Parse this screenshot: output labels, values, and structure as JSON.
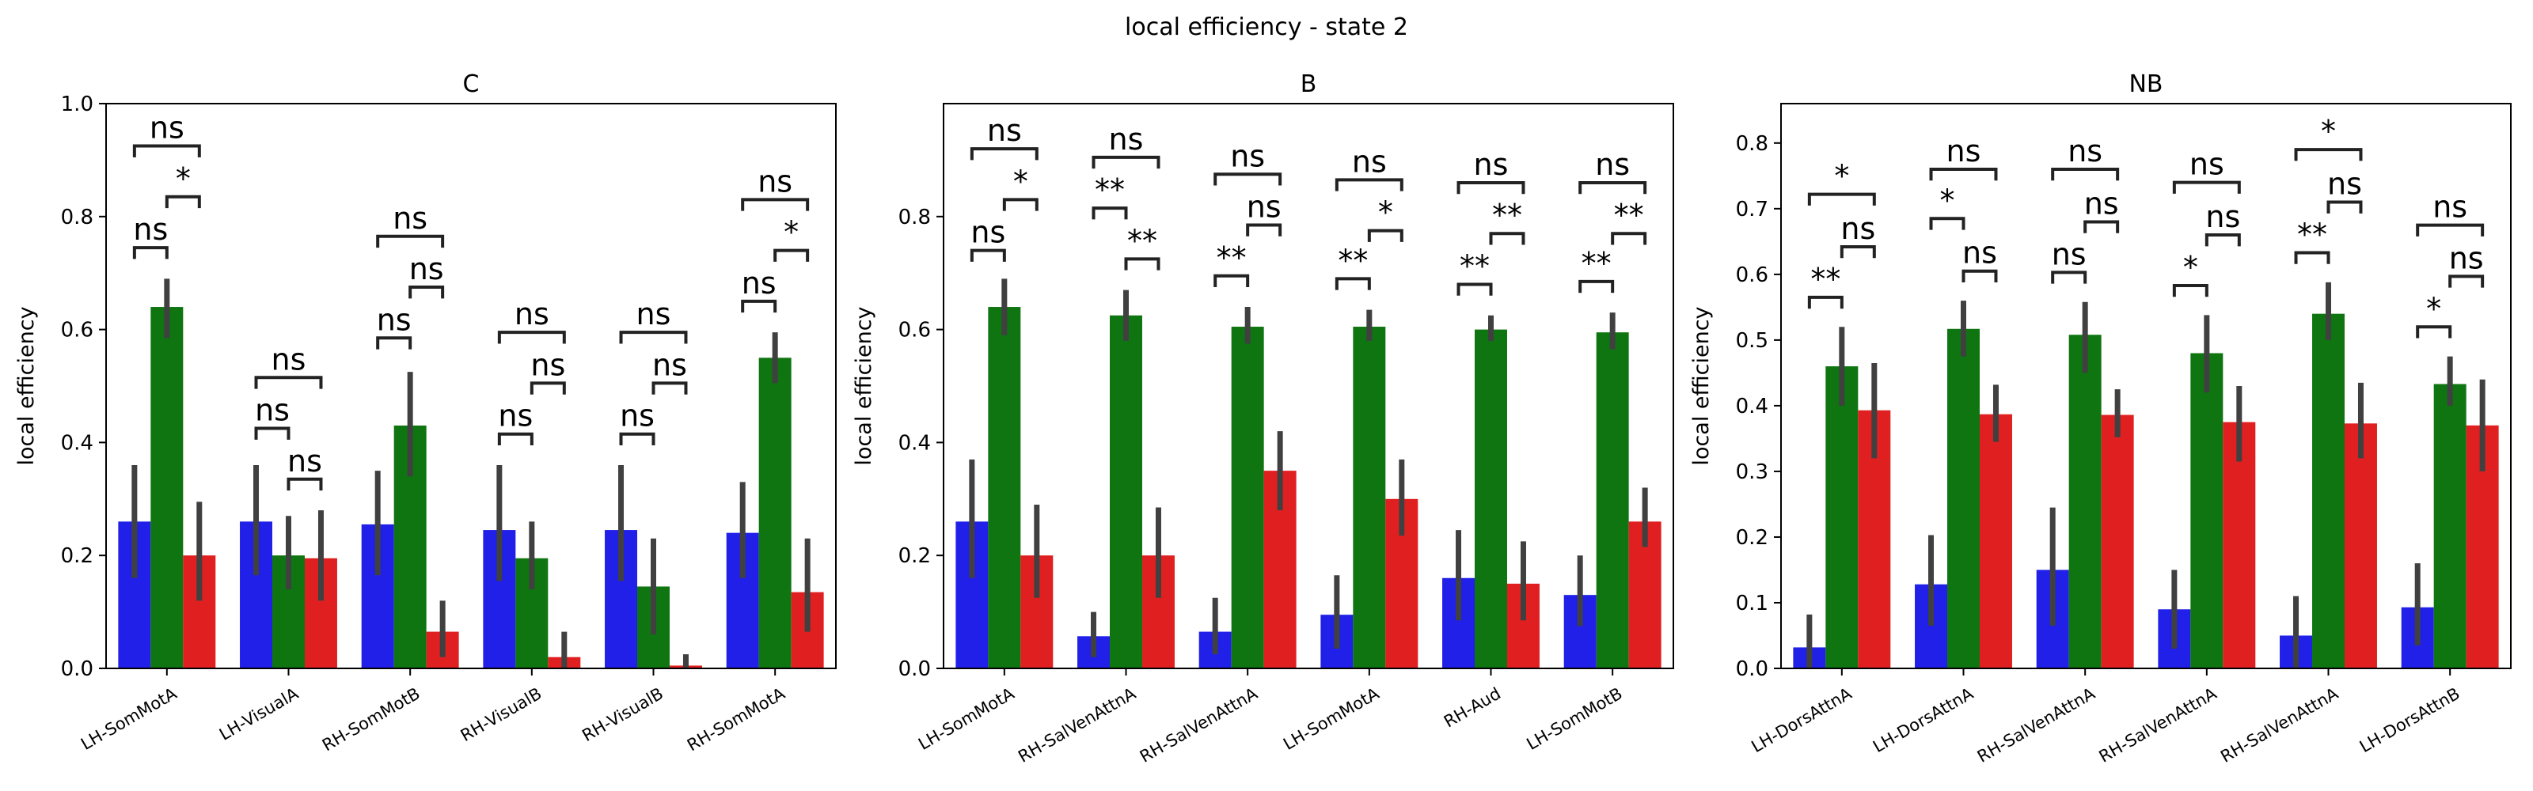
{
  "figure_title": "local efficiency - state 2",
  "colors": {
    "series_1": "#2020e8",
    "series_2": "#0e7510",
    "series_3": "#e02020",
    "error_bar": "#404040",
    "axes": "#000000"
  },
  "chart_data": [
    {
      "type": "bar",
      "title": "C",
      "ylabel": "local efficiency",
      "ylim": [
        0,
        1.0
      ],
      "yticks": [
        "0.0",
        "0.2",
        "0.4",
        "0.6",
        "0.8",
        "1.0"
      ],
      "categories": [
        "LH-SomMotA",
        "LH-VisualA",
        "RH-SomMotB",
        "RH-VisualB",
        "RH-VisualB",
        "RH-SomMotA"
      ],
      "series": [
        {
          "values": [
            0.26,
            0.26,
            0.255,
            0.245,
            0.245,
            0.24
          ],
          "err_low": [
            0.16,
            0.165,
            0.165,
            0.155,
            0.155,
            0.16
          ],
          "err_high": [
            0.36,
            0.36,
            0.35,
            0.36,
            0.36,
            0.33
          ]
        },
        {
          "values": [
            0.64,
            0.2,
            0.43,
            0.195,
            0.145,
            0.55
          ],
          "err_low": [
            0.585,
            0.14,
            0.34,
            0.14,
            0.06,
            0.505
          ],
          "err_high": [
            0.69,
            0.27,
            0.525,
            0.26,
            0.23,
            0.595
          ]
        },
        {
          "values": [
            0.2,
            0.195,
            0.065,
            0.02,
            0.005,
            0.135
          ],
          "err_low": [
            0.12,
            0.12,
            0.02,
            0.0,
            0.0,
            0.065
          ],
          "err_high": [
            0.295,
            0.28,
            0.12,
            0.065,
            0.025,
            0.23
          ]
        }
      ],
      "annotations": [
        {
          "text": "ns",
          "pair": [
            0,
            1
          ],
          "y": 0.745,
          "level": 0
        },
        {
          "text": "*",
          "pair": [
            1,
            2
          ],
          "y": 0.835,
          "level": 0
        },
        {
          "text": "ns",
          "pair": [
            0,
            2
          ],
          "y": 0.925,
          "level": 1
        },
        {
          "text": "ns",
          "pair": [
            0,
            1
          ],
          "y": 0.425,
          "level": 0
        },
        {
          "text": "ns",
          "pair": [
            1,
            2
          ],
          "y": 0.335,
          "level": 0
        },
        {
          "text": "ns",
          "pair": [
            0,
            2
          ],
          "y": 0.515,
          "level": 1
        },
        {
          "text": "ns",
          "pair": [
            0,
            1
          ],
          "y": 0.585,
          "level": 0
        },
        {
          "text": "ns",
          "pair": [
            1,
            2
          ],
          "y": 0.675,
          "level": 0
        },
        {
          "text": "ns",
          "pair": [
            0,
            2
          ],
          "y": 0.765,
          "level": 1
        },
        {
          "text": "ns",
          "pair": [
            0,
            1
          ],
          "y": 0.415,
          "level": 0
        },
        {
          "text": "ns",
          "pair": [
            1,
            2
          ],
          "y": 0.505,
          "level": 0
        },
        {
          "text": "ns",
          "pair": [
            0,
            2
          ],
          "y": 0.595,
          "level": 1
        },
        {
          "text": "ns",
          "pair": [
            0,
            1
          ],
          "y": 0.415,
          "level": 0
        },
        {
          "text": "ns",
          "pair": [
            1,
            2
          ],
          "y": 0.505,
          "level": 0
        },
        {
          "text": "ns",
          "pair": [
            0,
            2
          ],
          "y": 0.595,
          "level": 1
        },
        {
          "text": "ns",
          "pair": [
            0,
            1
          ],
          "y": 0.65,
          "level": 0
        },
        {
          "text": "*",
          "pair": [
            1,
            2
          ],
          "y": 0.74,
          "level": 0
        },
        {
          "text": "ns",
          "pair": [
            0,
            2
          ],
          "y": 0.83,
          "level": 1
        }
      ]
    },
    {
      "type": "bar",
      "title": "B",
      "ylabel": "local efficiency",
      "ylim": [
        0,
        1.0
      ],
      "yticks": [
        "0.0",
        "0.2",
        "0.4",
        "0.6",
        "0.8"
      ],
      "categories": [
        "LH-SomMotA",
        "RH-SalVenAttnA",
        "RH-SalVenAttnA",
        "LH-SomMotA",
        "RH-Aud",
        "LH-SomMotB"
      ],
      "series": [
        {
          "values": [
            0.26,
            0.057,
            0.065,
            0.095,
            0.16,
            0.13
          ],
          "err_low": [
            0.16,
            0.02,
            0.025,
            0.035,
            0.085,
            0.075
          ],
          "err_high": [
            0.37,
            0.1,
            0.125,
            0.165,
            0.245,
            0.2
          ]
        },
        {
          "values": [
            0.64,
            0.625,
            0.605,
            0.605,
            0.6,
            0.595
          ],
          "err_low": [
            0.59,
            0.58,
            0.575,
            0.58,
            0.58,
            0.565
          ],
          "err_high": [
            0.69,
            0.67,
            0.64,
            0.635,
            0.625,
            0.63
          ]
        },
        {
          "values": [
            0.2,
            0.2,
            0.35,
            0.3,
            0.15,
            0.26
          ],
          "err_low": [
            0.125,
            0.125,
            0.28,
            0.235,
            0.085,
            0.215
          ],
          "err_high": [
            0.29,
            0.285,
            0.42,
            0.37,
            0.225,
            0.32
          ]
        }
      ],
      "annotations": [
        {
          "text": "ns",
          "pair": [
            0,
            1
          ],
          "y": 0.74,
          "level": 0
        },
        {
          "text": "*",
          "pair": [
            1,
            2
          ],
          "y": 0.83,
          "level": 0
        },
        {
          "text": "ns",
          "pair": [
            0,
            2
          ],
          "y": 0.92,
          "level": 1
        },
        {
          "text": "**",
          "pair": [
            0,
            1
          ],
          "y": 0.815,
          "level": 0
        },
        {
          "text": "**",
          "pair": [
            1,
            2
          ],
          "y": 0.725,
          "level": 0
        },
        {
          "text": "ns",
          "pair": [
            0,
            2
          ],
          "y": 0.905,
          "level": 1
        },
        {
          "text": "**",
          "pair": [
            0,
            1
          ],
          "y": 0.695,
          "level": 0
        },
        {
          "text": "ns",
          "pair": [
            1,
            2
          ],
          "y": 0.785,
          "level": 0
        },
        {
          "text": "ns",
          "pair": [
            0,
            2
          ],
          "y": 0.875,
          "level": 1
        },
        {
          "text": "**",
          "pair": [
            0,
            1
          ],
          "y": 0.69,
          "level": 0
        },
        {
          "text": "*",
          "pair": [
            1,
            2
          ],
          "y": 0.775,
          "level": 0
        },
        {
          "text": "ns",
          "pair": [
            0,
            2
          ],
          "y": 0.865,
          "level": 1
        },
        {
          "text": "**",
          "pair": [
            0,
            1
          ],
          "y": 0.68,
          "level": 0
        },
        {
          "text": "**",
          "pair": [
            1,
            2
          ],
          "y": 0.77,
          "level": 0
        },
        {
          "text": "ns",
          "pair": [
            0,
            2
          ],
          "y": 0.86,
          "level": 1
        },
        {
          "text": "**",
          "pair": [
            0,
            1
          ],
          "y": 0.685,
          "level": 0
        },
        {
          "text": "**",
          "pair": [
            1,
            2
          ],
          "y": 0.77,
          "level": 0
        },
        {
          "text": "ns",
          "pair": [
            0,
            2
          ],
          "y": 0.86,
          "level": 1
        }
      ]
    },
    {
      "type": "bar",
      "title": "NB",
      "ylabel": "local efficiency",
      "ylim": [
        0,
        0.86
      ],
      "yticks": [
        "0.0",
        "0.1",
        "0.2",
        "0.3",
        "0.4",
        "0.5",
        "0.6",
        "0.7",
        "0.8"
      ],
      "categories": [
        "LH-DorsAttnA",
        "LH-DorsAttnA",
        "RH-SalVenAttnA",
        "RH-SalVenAttnA",
        "RH-SalVenAttnA",
        "LH-DorsAttnB"
      ],
      "series": [
        {
          "values": [
            0.032,
            0.128,
            0.15,
            0.09,
            0.05,
            0.093
          ],
          "err_low": [
            0.0,
            0.065,
            0.065,
            0.03,
            0.0,
            0.035
          ],
          "err_high": [
            0.082,
            0.203,
            0.245,
            0.15,
            0.11,
            0.16
          ]
        },
        {
          "values": [
            0.46,
            0.517,
            0.508,
            0.48,
            0.54,
            0.433
          ],
          "err_low": [
            0.4,
            0.475,
            0.45,
            0.42,
            0.5,
            0.4
          ],
          "err_high": [
            0.52,
            0.56,
            0.558,
            0.538,
            0.588,
            0.475
          ]
        },
        {
          "values": [
            0.393,
            0.387,
            0.386,
            0.375,
            0.373,
            0.37
          ],
          "err_low": [
            0.32,
            0.345,
            0.352,
            0.315,
            0.32,
            0.3
          ],
          "err_high": [
            0.465,
            0.432,
            0.425,
            0.43,
            0.435,
            0.44
          ]
        }
      ],
      "annotations": [
        {
          "text": "**",
          "pair": [
            0,
            1
          ],
          "y": 0.565,
          "level": 0
        },
        {
          "text": "ns",
          "pair": [
            1,
            2
          ],
          "y": 0.642,
          "level": 0
        },
        {
          "text": "*",
          "pair": [
            0,
            2
          ],
          "y": 0.722,
          "level": 1
        },
        {
          "text": "*",
          "pair": [
            0,
            1
          ],
          "y": 0.685,
          "level": 0
        },
        {
          "text": "ns",
          "pair": [
            1,
            2
          ],
          "y": 0.605,
          "level": 0
        },
        {
          "text": "ns",
          "pair": [
            0,
            2
          ],
          "y": 0.76,
          "level": 1
        },
        {
          "text": "ns",
          "pair": [
            0,
            1
          ],
          "y": 0.603,
          "level": 0
        },
        {
          "text": "ns",
          "pair": [
            1,
            2
          ],
          "y": 0.68,
          "level": 0
        },
        {
          "text": "ns",
          "pair": [
            0,
            2
          ],
          "y": 0.76,
          "level": 1
        },
        {
          "text": "*",
          "pair": [
            0,
            1
          ],
          "y": 0.583,
          "level": 0
        },
        {
          "text": "ns",
          "pair": [
            1,
            2
          ],
          "y": 0.66,
          "level": 0
        },
        {
          "text": "ns",
          "pair": [
            0,
            2
          ],
          "y": 0.74,
          "level": 1
        },
        {
          "text": "**",
          "pair": [
            0,
            1
          ],
          "y": 0.633,
          "level": 0
        },
        {
          "text": "ns",
          "pair": [
            1,
            2
          ],
          "y": 0.71,
          "level": 0
        },
        {
          "text": "*",
          "pair": [
            0,
            2
          ],
          "y": 0.79,
          "level": 1
        },
        {
          "text": "*",
          "pair": [
            0,
            1
          ],
          "y": 0.52,
          "level": 0
        },
        {
          "text": "ns",
          "pair": [
            1,
            2
          ],
          "y": 0.597,
          "level": 0
        },
        {
          "text": "ns",
          "pair": [
            0,
            2
          ],
          "y": 0.675,
          "level": 1
        }
      ]
    }
  ]
}
